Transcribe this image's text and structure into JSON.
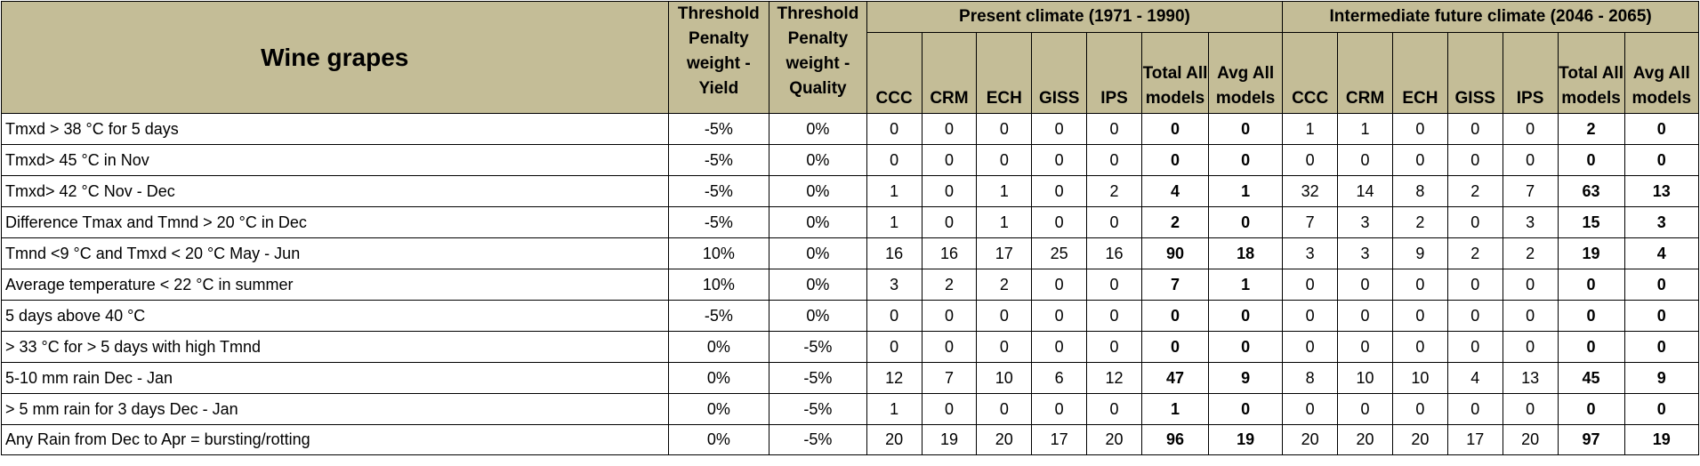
{
  "header": {
    "title": "Wine grapes",
    "threshold_yield": "Threshold Penalty weight - Yield",
    "threshold_quality": "Threshold Penalty weight - Quality",
    "groups": [
      "Present climate (1971 - 1990)",
      "Intermediate future climate (2046 - 2065)"
    ],
    "models": [
      "CCC",
      "CRM",
      "ECH",
      "GISS",
      "IPS"
    ],
    "total_label": "Total All models",
    "avg_label": "Avg All models"
  },
  "rows": [
    {
      "label": "Tmxd > 38 °C for 5 days",
      "yield": "-5%",
      "quality": "0%",
      "present": [
        "0",
        "0",
        "0",
        "0",
        "0"
      ],
      "present_total": "0",
      "present_avg": "0",
      "future": [
        "1",
        "1",
        "0",
        "0",
        "0"
      ],
      "future_total": "2",
      "future_avg": "0"
    },
    {
      "label": "Tmxd> 45 °C in Nov",
      "yield": "-5%",
      "quality": "0%",
      "present": [
        "0",
        "0",
        "0",
        "0",
        "0"
      ],
      "present_total": "0",
      "present_avg": "0",
      "future": [
        "0",
        "0",
        "0",
        "0",
        "0"
      ],
      "future_total": "0",
      "future_avg": "0"
    },
    {
      "label": "Tmxd> 42 °C Nov - Dec",
      "yield": "-5%",
      "quality": "0%",
      "present": [
        "1",
        "0",
        "1",
        "0",
        "2"
      ],
      "present_total": "4",
      "present_avg": "1",
      "future": [
        "32",
        "14",
        "8",
        "2",
        "7"
      ],
      "future_total": "63",
      "future_avg": "13"
    },
    {
      "label": "Difference Tmax and Tmnd > 20 °C in Dec",
      "yield": "-5%",
      "quality": "0%",
      "present": [
        "1",
        "0",
        "1",
        "0",
        "0"
      ],
      "present_total": "2",
      "present_avg": "0",
      "future": [
        "7",
        "3",
        "2",
        "0",
        "3"
      ],
      "future_total": "15",
      "future_avg": "3"
    },
    {
      "label": "Tmnd <9 °C and Tmxd < 20 °C May - Jun",
      "yield": "10%",
      "quality": "0%",
      "present": [
        "16",
        "16",
        "17",
        "25",
        "16"
      ],
      "present_total": "90",
      "present_avg": "18",
      "future": [
        "3",
        "3",
        "9",
        "2",
        "2"
      ],
      "future_total": "19",
      "future_avg": "4"
    },
    {
      "label": "Average temperature < 22 °C in summer",
      "yield": "10%",
      "quality": "0%",
      "present": [
        "3",
        "2",
        "2",
        "0",
        "0"
      ],
      "present_total": "7",
      "present_avg": "1",
      "future": [
        "0",
        "0",
        "0",
        "0",
        "0"
      ],
      "future_total": "0",
      "future_avg": "0"
    },
    {
      "label": "5 days above 40 °C",
      "yield": "-5%",
      "quality": "0%",
      "present": [
        "0",
        "0",
        "0",
        "0",
        "0"
      ],
      "present_total": "0",
      "present_avg": "0",
      "future": [
        "0",
        "0",
        "0",
        "0",
        "0"
      ],
      "future_total": "0",
      "future_avg": "0"
    },
    {
      "label": "> 33 °C for > 5 days with high Tmnd",
      "yield": "0%",
      "quality": "-5%",
      "present": [
        "0",
        "0",
        "0",
        "0",
        "0"
      ],
      "present_total": "0",
      "present_avg": "0",
      "future": [
        "0",
        "0",
        "0",
        "0",
        "0"
      ],
      "future_total": "0",
      "future_avg": "0"
    },
    {
      "label": "5-10 mm rain Dec - Jan",
      "yield": "0%",
      "quality": "-5%",
      "present": [
        "12",
        "7",
        "10",
        "6",
        "12"
      ],
      "present_total": "47",
      "present_avg": "9",
      "future": [
        "8",
        "10",
        "10",
        "4",
        "13"
      ],
      "future_total": "45",
      "future_avg": "9"
    },
    {
      "label": "> 5 mm rain for 3 days Dec - Jan",
      "yield": "0%",
      "quality": "-5%",
      "present": [
        "1",
        "0",
        "0",
        "0",
        "0"
      ],
      "present_total": "1",
      "present_avg": "0",
      "future": [
        "0",
        "0",
        "0",
        "0",
        "0"
      ],
      "future_total": "0",
      "future_avg": "0"
    },
    {
      "label": "Any Rain from Dec to Apr = bursting/rotting",
      "yield": "0%",
      "quality": "-5%",
      "present": [
        "20",
        "19",
        "20",
        "17",
        "20"
      ],
      "present_total": "96",
      "present_avg": "19",
      "future": [
        "20",
        "20",
        "20",
        "17",
        "20"
      ],
      "future_total": "97",
      "future_avg": "19"
    }
  ],
  "colors": {
    "header_background": "#c4bd97",
    "border": "#000000",
    "body_background": "#ffffff"
  }
}
